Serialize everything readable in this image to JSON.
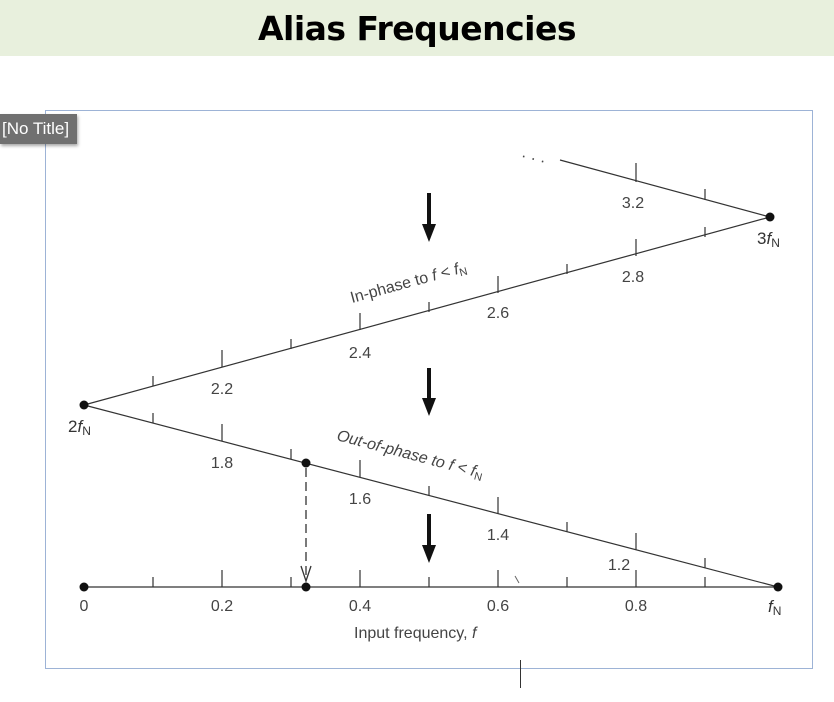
{
  "header": {
    "title": "Alias Frequencies"
  },
  "tag": {
    "label": "[No Title]"
  },
  "diagram": {
    "x_axis_label": "Input frequency, ",
    "x_axis_var": "f",
    "x_ticks": [
      "0",
      "0.2",
      "0.4",
      "0.6",
      "0.8"
    ],
    "fN_label": "f",
    "fN_sub": "N",
    "two_fN_prefix": "2",
    "three_fN_prefix": "3",
    "descending_upper_ticks": [
      "1.8",
      "1.6",
      "1.4",
      "1.2"
    ],
    "ascending_ticks": [
      "2.2",
      "2.4",
      "2.6",
      "2.8"
    ],
    "top_tick": "3.2",
    "ellipsis": "· · ·",
    "in_phase_text": "In-phase to ",
    "in_phase_f": "f",
    "out_phase_text": "Out-of-phase to ",
    "out_phase_f": "f",
    "less_than": " < ",
    "sub_N": "N"
  }
}
